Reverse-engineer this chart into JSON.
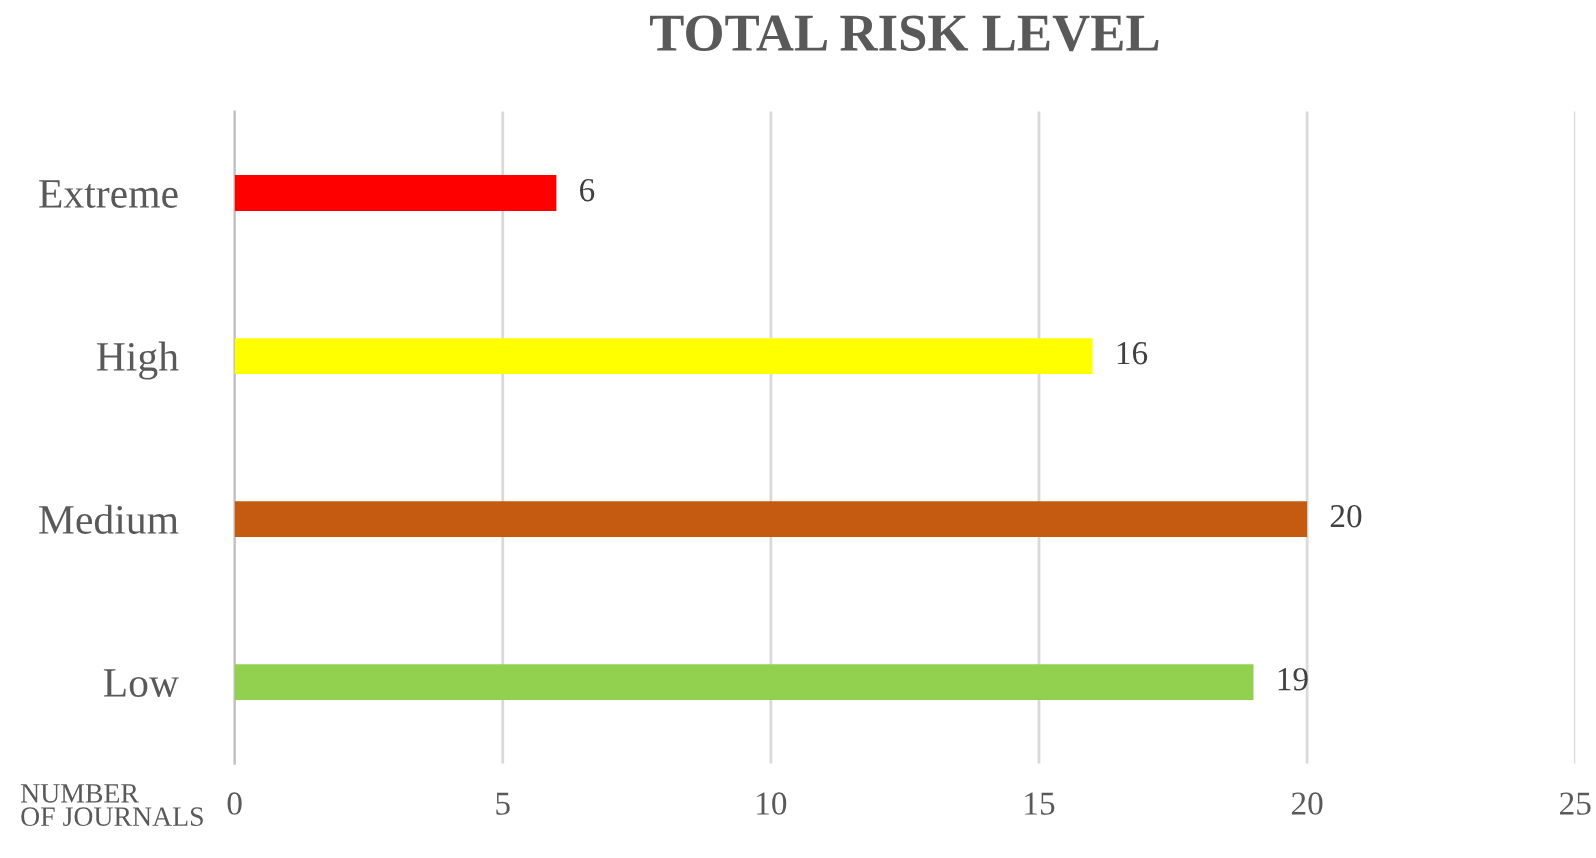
{
  "chart_data": {
    "type": "bar",
    "orientation": "horizontal",
    "title": "TOTAL RISK LEVEL",
    "xlabel": "NUMBER\nOF JOURNALS",
    "categories": [
      "Extreme",
      "High",
      "Medium",
      "Low"
    ],
    "values": [
      6,
      16,
      20,
      19
    ],
    "colors": [
      "#ff0000",
      "#ffff00",
      "#c55a11",
      "#92d050"
    ],
    "xlim": [
      0,
      25
    ],
    "xticks": [
      0,
      5,
      10,
      15,
      20,
      25
    ],
    "grid": "x",
    "data_labels": true
  }
}
